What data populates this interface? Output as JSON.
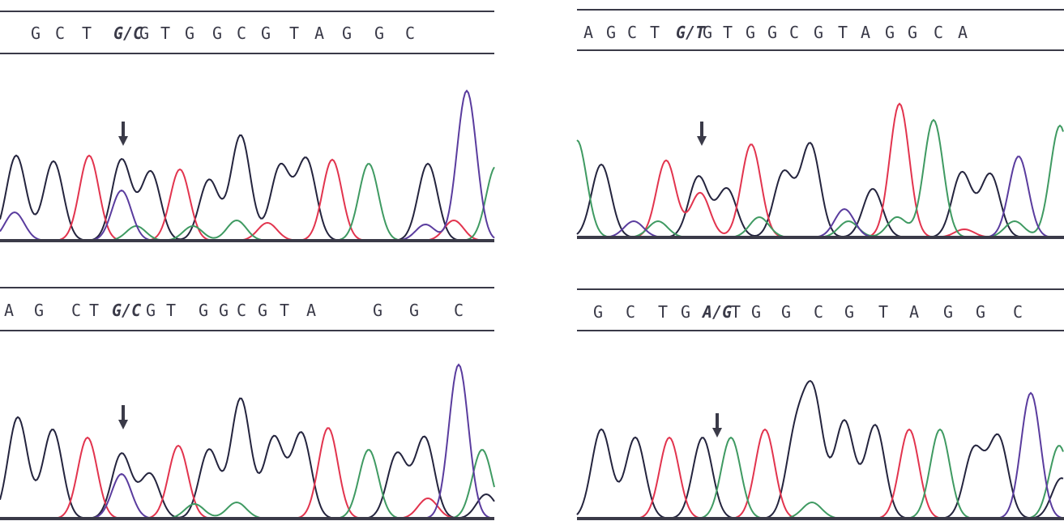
{
  "panels": [
    {
      "sequence": [
        "G",
        "C",
        "T",
        "G/C",
        "G",
        "T",
        "G",
        "G",
        "C",
        "G",
        "T",
        "A",
        "G",
        "G",
        "C"
      ]
    },
    {
      "sequence": [
        "A",
        "G",
        "C",
        "T",
        "G/T",
        "G",
        "T",
        "G",
        "G",
        "C",
        "G",
        "T",
        "A",
        "G",
        "G",
        "C",
        "A"
      ]
    },
    {
      "sequence": [
        "A",
        "G",
        "C",
        "T",
        "G/C",
        "G",
        "T",
        "G",
        "G",
        "C",
        "G",
        "T",
        "A",
        "G",
        "G",
        "C"
      ]
    },
    {
      "sequence": [
        "G",
        "C",
        "T",
        "G",
        "A/G",
        "T",
        "G",
        "G",
        "C",
        "G",
        "T",
        "A",
        "G",
        "G",
        "C"
      ]
    }
  ]
}
